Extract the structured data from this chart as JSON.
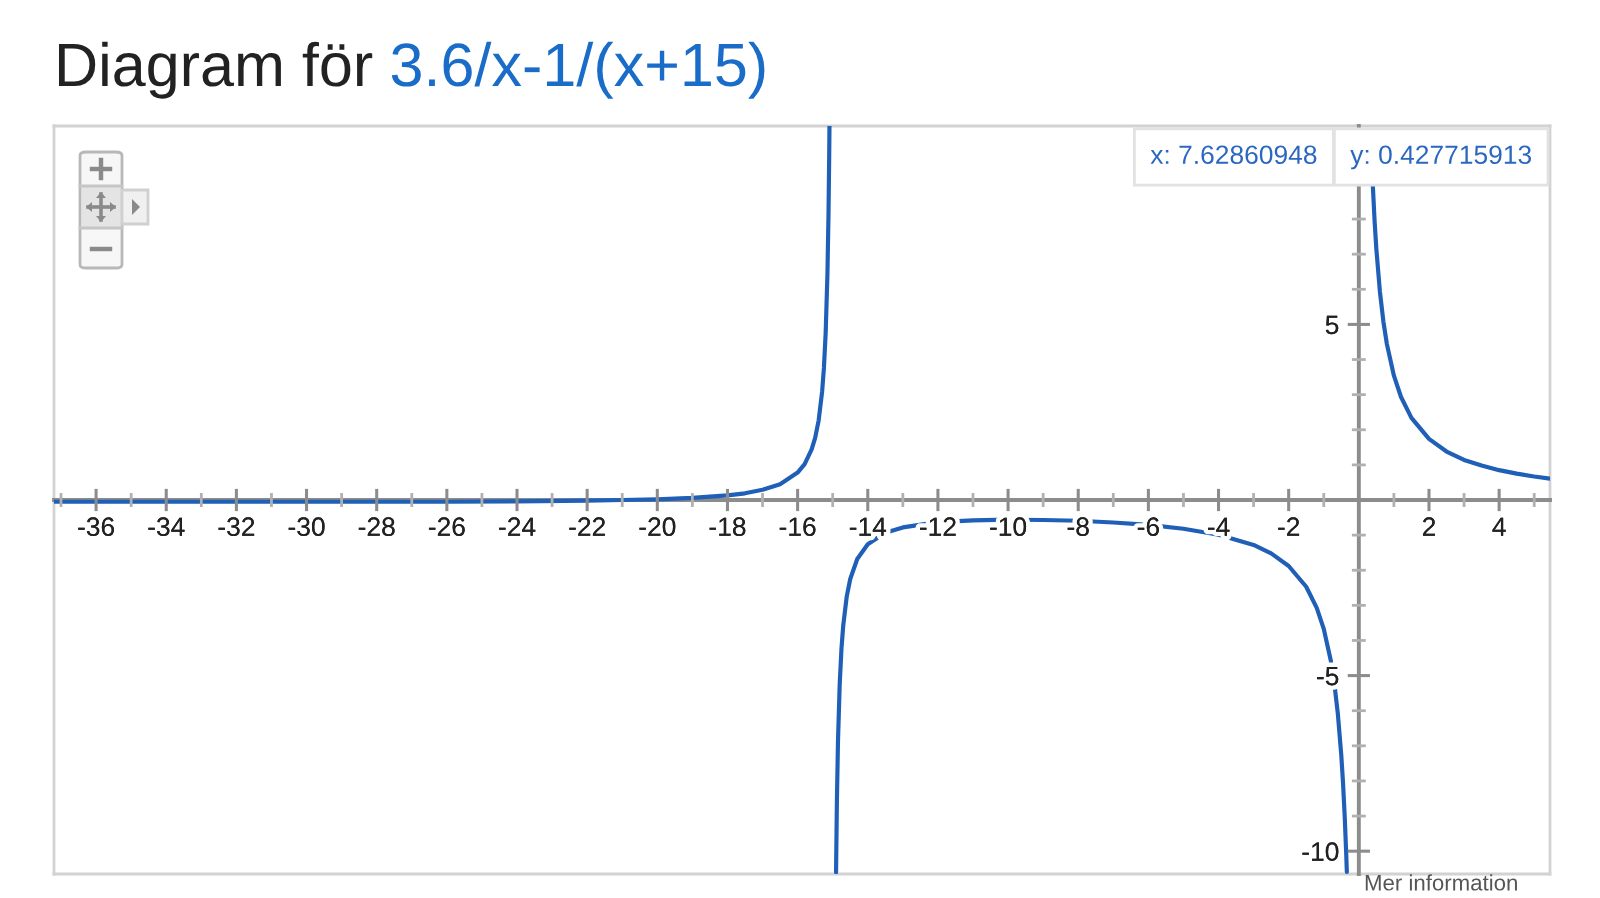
{
  "chart_data": {
    "type": "line",
    "title": "Diagram för",
    "subtitle": "3.6/x-1/(x+15)",
    "annotations": [
      "x: 7.62860948",
      "y: 0.427715913",
      "Mer information"
    ],
    "xlim": [
      -37.2,
      5.45
    ],
    "ylim": [
      -10.65,
      10.65
    ],
    "xticks": [
      {
        "value": -37,
        "label": null
      },
      -36,
      {
        "value": -35,
        "label": null
      },
      -34,
      {
        "value": -33,
        "label": null
      },
      -32,
      {
        "value": -31,
        "label": null
      },
      -30,
      {
        "value": -29,
        "label": null
      },
      -28,
      {
        "value": -27,
        "label": null
      },
      -26,
      {
        "value": -25,
        "label": null
      },
      -24,
      {
        "value": -23,
        "label": null
      },
      -22,
      {
        "value": -21,
        "label": null
      },
      -20,
      {
        "value": -19,
        "label": null
      },
      -18,
      {
        "value": -17,
        "label": null
      },
      -16,
      {
        "value": -15,
        "label": null
      },
      -14,
      {
        "value": -13,
        "label": null
      },
      -12,
      {
        "value": -11,
        "label": null
      },
      -10,
      {
        "value": -9,
        "label": null
      },
      -8,
      {
        "value": -7,
        "label": null
      },
      -6,
      {
        "value": -5,
        "label": null
      },
      -4,
      {
        "value": -3,
        "label": null
      },
      -2,
      {
        "value": -1,
        "label": null
      },
      {
        "value": 1,
        "label": null
      },
      2,
      {
        "value": 3,
        "label": null
      },
      4,
      {
        "value": 5,
        "label": null
      }
    ],
    "yticks": [
      -10,
      {
        "value": -9,
        "label": null
      },
      {
        "value": -8,
        "label": null
      },
      {
        "value": -7,
        "label": null
      },
      {
        "value": -6,
        "label": null
      },
      -5,
      {
        "value": -4,
        "label": null
      },
      {
        "value": -3,
        "label": null
      },
      {
        "value": -2,
        "label": null
      },
      {
        "value": -1,
        "label": null
      },
      {
        "value": 1,
        "label": null
      },
      {
        "value": 2,
        "label": null
      },
      {
        "value": 3,
        "label": null
      },
      {
        "value": 4,
        "label": null
      },
      5,
      {
        "value": 6,
        "label": null
      },
      {
        "value": 7,
        "label": null
      },
      {
        "value": 8,
        "label": null
      },
      {
        "value": 9,
        "label": null
      }
    ],
    "series": [
      {
        "color": "#1f5fb8",
        "x": [
          -37.2,
          -36,
          -34,
          -32,
          -30,
          -28,
          -26,
          -24,
          -22,
          -21,
          -20,
          -19,
          -18,
          -17.5,
          -17,
          -16.5,
          -16,
          -15.8,
          -15.6,
          -15.5,
          -15.4,
          -15.3,
          -15.25,
          -15.2,
          -15.15,
          -15.12,
          -15.1,
          -15.092,
          -15,
          -14.904,
          -14.9,
          -14.88,
          -14.85,
          -14.8,
          -14.75,
          -14.7,
          -14.6,
          -14.5,
          -14.3,
          -14,
          -13.5,
          -13,
          -12,
          -11,
          -10,
          -9,
          -8,
          -7,
          -6,
          -5,
          -4,
          -3,
          -2.5,
          -2,
          -1.5,
          -1.2,
          -1,
          -0.8,
          -0.7,
          -0.6,
          -0.5,
          -0.45,
          -0.4,
          -0.36,
          -0.342,
          0,
          0.4,
          0.45,
          0.5,
          0.6,
          0.7,
          0.8,
          1,
          1.2,
          1.5,
          2,
          2.5,
          3,
          3.5,
          4,
          4.5,
          5,
          5.45
        ],
        "values": [
          -0.05,
          -0.05,
          -0.05,
          -0.05,
          -0.05,
          -0.05,
          -0.05,
          -0.04,
          -0.02,
          0.0,
          0.02,
          0.06,
          0.13,
          0.19,
          0.29,
          0.45,
          0.78,
          1.02,
          1.44,
          1.77,
          2.27,
          3.1,
          3.76,
          4.76,
          6.43,
          8.1,
          9.76,
          10.63,
          null,
          -10.6,
          -10.24,
          -8.58,
          -6.91,
          -5.24,
          -4.24,
          -3.58,
          -2.75,
          -2.25,
          -1.68,
          -1.26,
          -0.93,
          -0.78,
          -0.63,
          -0.58,
          -0.56,
          -0.57,
          -0.59,
          -0.64,
          -0.71,
          -0.82,
          -0.99,
          -1.28,
          -1.52,
          -1.88,
          -2.47,
          -3.07,
          -3.67,
          -4.57,
          -5.21,
          -6.07,
          -7.27,
          -8.07,
          -9.07,
          -10.07,
          -10.59,
          null,
          8.93,
          7.93,
          7.14,
          5.94,
          5.08,
          4.44,
          3.54,
          2.94,
          2.34,
          1.74,
          1.38,
          1.14,
          0.98,
          0.85,
          0.75,
          0.67,
          0.61
        ]
      }
    ]
  }
}
